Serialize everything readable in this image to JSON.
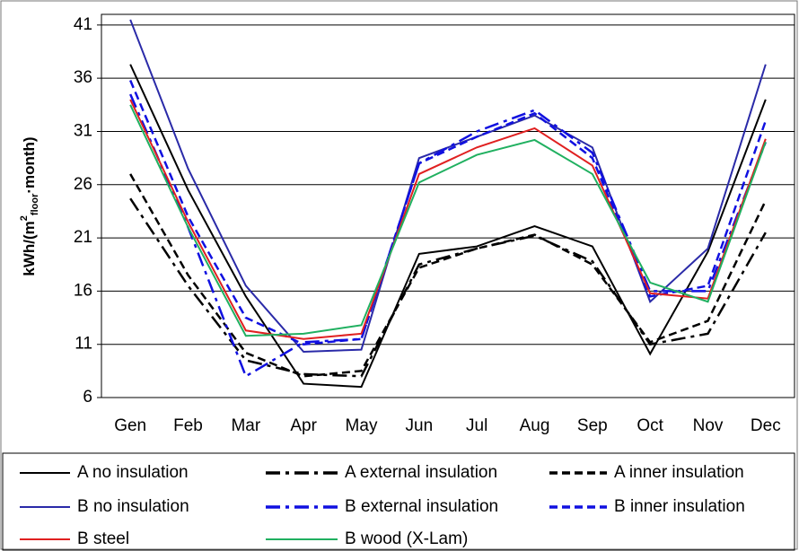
{
  "chart_data": {
    "type": "line",
    "y_label": [
      "kWh/(m",
      "2",
      "floor",
      "·month)"
    ],
    "categories": [
      "Gen",
      "Feb",
      "Mar",
      "Apr",
      "May",
      "Jun",
      "Jul",
      "Aug",
      "Sep",
      "Oct",
      "Nov",
      "Dec"
    ],
    "ylim": [
      6,
      42
    ],
    "yticks": [
      6,
      11,
      16,
      21,
      26,
      31,
      36,
      41
    ],
    "grid": true,
    "series": [
      {
        "name": "A no insulation",
        "color": "#000000",
        "dash": "solid",
        "values": [
          37.3,
          25.5,
          15.5,
          7.3,
          7.0,
          19.5,
          20.2,
          22.1,
          20.2,
          10.1,
          19.7,
          34.0
        ]
      },
      {
        "name": "A external insulation",
        "color": "#000000",
        "dash": "dashdot",
        "values": [
          24.7,
          16.5,
          9.5,
          8.2,
          8.0,
          18.5,
          20.0,
          21.2,
          18.8,
          11.0,
          12.0,
          21.5
        ]
      },
      {
        "name": "A inner insulation",
        "color": "#000000",
        "dash": "dashed",
        "values": [
          27.0,
          17.5,
          10.2,
          8.0,
          8.5,
          18.2,
          20.0,
          21.3,
          18.5,
          11.2,
          13.2,
          24.5
        ]
      },
      {
        "name": "B no insulation",
        "color": "#2a2aa8",
        "dash": "solid",
        "values": [
          41.5,
          27.5,
          16.5,
          10.3,
          10.5,
          28.5,
          30.5,
          32.5,
          29.5,
          15.0,
          20.0,
          37.3
        ]
      },
      {
        "name": "B external insulation",
        "color": "#1010e0",
        "dash": "dashdot",
        "values": [
          34.5,
          22.0,
          8.0,
          11.2,
          11.5,
          28.0,
          31.0,
          33.0,
          29.0,
          16.0,
          16.0,
          30.0
        ]
      },
      {
        "name": "B inner insulation",
        "color": "#1010e0",
        "dash": "dashed",
        "values": [
          35.8,
          23.0,
          13.5,
          11.0,
          11.5,
          28.0,
          30.5,
          32.7,
          28.5,
          15.5,
          16.5,
          32.0
        ]
      },
      {
        "name": "B steel",
        "color": "#e02020",
        "dash": "solid",
        "values": [
          34.0,
          22.5,
          12.3,
          11.5,
          12.0,
          27.0,
          29.5,
          31.3,
          27.8,
          15.8,
          15.3,
          30.3
        ]
      },
      {
        "name": "B wood (X-Lam)",
        "color": "#20b060",
        "dash": "solid",
        "values": [
          33.5,
          22.0,
          11.8,
          12.0,
          12.8,
          26.2,
          28.8,
          30.2,
          27.0,
          16.8,
          15.0,
          30.0
        ]
      }
    ]
  }
}
